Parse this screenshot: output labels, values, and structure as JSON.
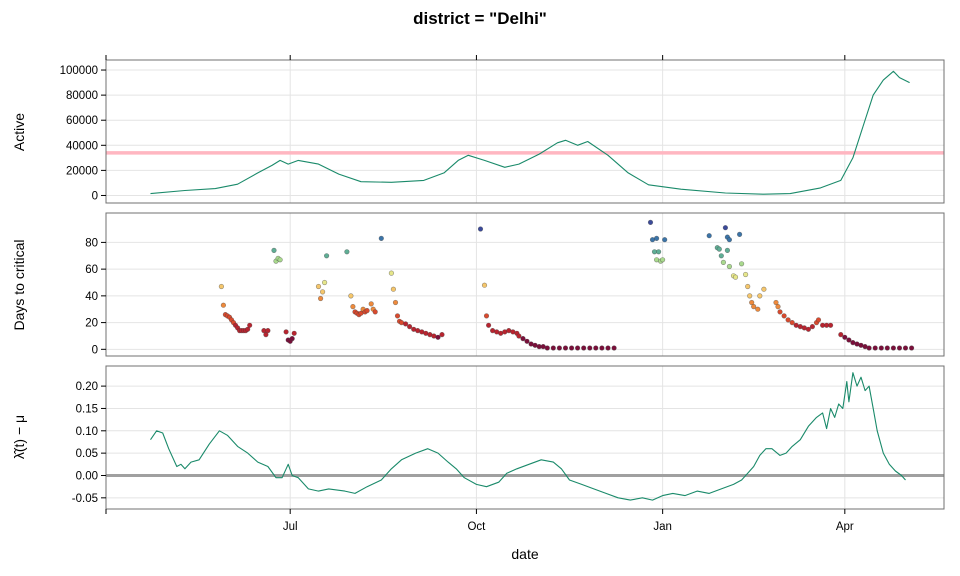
{
  "title": "district = \"Delhi\"",
  "xlabel": "date",
  "x_tick_labels": [
    "Jul",
    "Oct",
    "Jan",
    "Apr"
  ],
  "colors": {
    "line": "#1a8a6a",
    "threshold": "#ffb6c1",
    "zero_line": "#a0a0a0",
    "grid": "#e4e4e4",
    "frame": "#707070"
  },
  "chart_data": [
    {
      "type": "line",
      "panel": "active",
      "ylabel": "Active",
      "y_ticks": [
        0,
        20000,
        40000,
        60000,
        80000,
        100000
      ],
      "y_tick_labels": [
        "0",
        "20000",
        "40000",
        "60000",
        "80000",
        "100000"
      ],
      "ylim": [
        -6000,
        108000
      ],
      "threshold": 34000,
      "x_range": [
        "2020-04-01",
        "2021-05-20"
      ],
      "points": [
        [
          "2020-04-23",
          1500
        ],
        [
          "2020-05-10",
          4000
        ],
        [
          "2020-05-25",
          5500
        ],
        [
          "2020-06-05",
          9000
        ],
        [
          "2020-06-15",
          18000
        ],
        [
          "2020-06-22",
          24000
        ],
        [
          "2020-06-26",
          28000
        ],
        [
          "2020-06-30",
          25000
        ],
        [
          "2020-07-05",
          28000
        ],
        [
          "2020-07-15",
          25000
        ],
        [
          "2020-07-25",
          17000
        ],
        [
          "2020-08-05",
          11000
        ],
        [
          "2020-08-20",
          10500
        ],
        [
          "2020-09-05",
          12000
        ],
        [
          "2020-09-15",
          18000
        ],
        [
          "2020-09-22",
          28000
        ],
        [
          "2020-09-27",
          32000
        ],
        [
          "2020-10-05",
          28000
        ],
        [
          "2020-10-15",
          22500
        ],
        [
          "2020-10-22",
          25000
        ],
        [
          "2020-11-01",
          33000
        ],
        [
          "2020-11-10",
          42000
        ],
        [
          "2020-11-14",
          44000
        ],
        [
          "2020-11-20",
          40000
        ],
        [
          "2020-11-25",
          43000
        ],
        [
          "2020-12-05",
          32000
        ],
        [
          "2020-12-15",
          18000
        ],
        [
          "2020-12-25",
          8500
        ],
        [
          "2021-01-10",
          5000
        ],
        [
          "2021-02-01",
          2000
        ],
        [
          "2021-02-20",
          1000
        ],
        [
          "2021-03-05",
          1500
        ],
        [
          "2021-03-20",
          6000
        ],
        [
          "2021-03-30",
          12000
        ],
        [
          "2021-04-05",
          30000
        ],
        [
          "2021-04-10",
          55000
        ],
        [
          "2021-04-15",
          80000
        ],
        [
          "2021-04-20",
          92000
        ],
        [
          "2021-04-25",
          99000
        ],
        [
          "2021-04-28",
          94000
        ],
        [
          "2021-05-03",
          90000
        ]
      ]
    },
    {
      "type": "scatter",
      "panel": "days-to-critical",
      "ylabel": "Days to critical",
      "y_ticks": [
        0,
        20,
        40,
        60,
        80
      ],
      "y_tick_labels": [
        "0",
        "20",
        "40",
        "60",
        "80"
      ],
      "ylim": [
        -5,
        102
      ],
      "x_range": [
        "2020-04-01",
        "2021-05-20"
      ],
      "points": [
        [
          "2020-05-28",
          47
        ],
        [
          "2020-05-29",
          33
        ],
        [
          "2020-05-30",
          26
        ],
        [
          "2020-05-31",
          25
        ],
        [
          "2020-06-01",
          24
        ],
        [
          "2020-06-02",
          22
        ],
        [
          "2020-06-03",
          20
        ],
        [
          "2020-06-04",
          18
        ],
        [
          "2020-06-05",
          16
        ],
        [
          "2020-06-06",
          14
        ],
        [
          "2020-06-07",
          14
        ],
        [
          "2020-06-08",
          14
        ],
        [
          "2020-06-09",
          14
        ],
        [
          "2020-06-10",
          15
        ],
        [
          "2020-06-11",
          18
        ],
        [
          "2020-06-18",
          14
        ],
        [
          "2020-06-19",
          11
        ],
        [
          "2020-06-20",
          14
        ],
        [
          "2020-06-23",
          74
        ],
        [
          "2020-06-24",
          66
        ],
        [
          "2020-06-25",
          68
        ],
        [
          "2020-06-26",
          67
        ],
        [
          "2020-06-29",
          13
        ],
        [
          "2020-06-30",
          7
        ],
        [
          "2020-07-01",
          6
        ],
        [
          "2020-07-02",
          8
        ],
        [
          "2020-07-03",
          12
        ],
        [
          "2020-07-15",
          47
        ],
        [
          "2020-07-16",
          38
        ],
        [
          "2020-07-17",
          43
        ],
        [
          "2020-07-18",
          50
        ],
        [
          "2020-07-19",
          70
        ],
        [
          "2020-07-29",
          73
        ],
        [
          "2020-07-31",
          40
        ],
        [
          "2020-08-01",
          32
        ],
        [
          "2020-08-02",
          28
        ],
        [
          "2020-08-03",
          27
        ],
        [
          "2020-08-04",
          26
        ],
        [
          "2020-08-05",
          27
        ],
        [
          "2020-08-06",
          30
        ],
        [
          "2020-08-07",
          28
        ],
        [
          "2020-08-08",
          29
        ],
        [
          "2020-08-10",
          34
        ],
        [
          "2020-08-11",
          30
        ],
        [
          "2020-08-12",
          28
        ],
        [
          "2020-08-15",
          83
        ],
        [
          "2020-08-20",
          57
        ],
        [
          "2020-08-21",
          45
        ],
        [
          "2020-08-22",
          35
        ],
        [
          "2020-08-23",
          25
        ],
        [
          "2020-08-24",
          21
        ],
        [
          "2020-08-25",
          20
        ],
        [
          "2020-08-27",
          19
        ],
        [
          "2020-08-29",
          17
        ],
        [
          "2020-08-31",
          15
        ],
        [
          "2020-09-02",
          14
        ],
        [
          "2020-09-04",
          13
        ],
        [
          "2020-09-06",
          12
        ],
        [
          "2020-09-08",
          11
        ],
        [
          "2020-09-10",
          10
        ],
        [
          "2020-09-12",
          9
        ],
        [
          "2020-09-14",
          11
        ],
        [
          "2020-10-03",
          90
        ],
        [
          "2020-10-05",
          48
        ],
        [
          "2020-10-06",
          25
        ],
        [
          "2020-10-07",
          18
        ],
        [
          "2020-10-09",
          14
        ],
        [
          "2020-10-11",
          13
        ],
        [
          "2020-10-13",
          12
        ],
        [
          "2020-10-15",
          13
        ],
        [
          "2020-10-17",
          14
        ],
        [
          "2020-10-19",
          13
        ],
        [
          "2020-10-21",
          12
        ],
        [
          "2020-10-22",
          10
        ],
        [
          "2020-10-24",
          8
        ],
        [
          "2020-10-26",
          6
        ],
        [
          "2020-10-28",
          4
        ],
        [
          "2020-10-30",
          3
        ],
        [
          "2020-11-01",
          2
        ],
        [
          "2020-11-03",
          2
        ],
        [
          "2020-11-05",
          1
        ],
        [
          "2020-11-08",
          1
        ],
        [
          "2020-11-11",
          1
        ],
        [
          "2020-11-14",
          1
        ],
        [
          "2020-11-17",
          1
        ],
        [
          "2020-11-20",
          1
        ],
        [
          "2020-11-23",
          1
        ],
        [
          "2020-11-26",
          1
        ],
        [
          "2020-11-29",
          1
        ],
        [
          "2020-12-02",
          1
        ],
        [
          "2020-12-05",
          1
        ],
        [
          "2020-12-08",
          1
        ],
        [
          "2020-12-26",
          95
        ],
        [
          "2020-12-27",
          82
        ],
        [
          "2020-12-29",
          83
        ],
        [
          "2020-12-28",
          73
        ],
        [
          "2020-12-30",
          73
        ],
        [
          "2020-12-29",
          67
        ],
        [
          "2020-12-31",
          66
        ],
        [
          "2021-01-01",
          67
        ],
        [
          "2021-01-02",
          82
        ],
        [
          "2021-01-24",
          85
        ],
        [
          "2021-01-28",
          76
        ],
        [
          "2021-01-29",
          75
        ],
        [
          "2021-01-30",
          70
        ],
        [
          "2021-01-31",
          65
        ],
        [
          "2021-02-01",
          91
        ],
        [
          "2021-02-02",
          84
        ],
        [
          "2021-02-03",
          82
        ],
        [
          "2021-02-02",
          74
        ],
        [
          "2021-02-03",
          62
        ],
        [
          "2021-02-05",
          55
        ],
        [
          "2021-02-06",
          54
        ],
        [
          "2021-02-08",
          86
        ],
        [
          "2021-02-09",
          64
        ],
        [
          "2021-02-11",
          56
        ],
        [
          "2021-02-12",
          47
        ],
        [
          "2021-02-13",
          40
        ],
        [
          "2021-02-14",
          35
        ],
        [
          "2021-02-15",
          32
        ],
        [
          "2021-02-17",
          30
        ],
        [
          "2021-02-18",
          40
        ],
        [
          "2021-02-20",
          45
        ],
        [
          "2021-02-26",
          35
        ],
        [
          "2021-02-27",
          32
        ],
        [
          "2021-02-28",
          28
        ],
        [
          "2021-03-02",
          25
        ],
        [
          "2021-03-04",
          22
        ],
        [
          "2021-03-06",
          20
        ],
        [
          "2021-03-08",
          18
        ],
        [
          "2021-03-10",
          17
        ],
        [
          "2021-03-12",
          16
        ],
        [
          "2021-03-14",
          15
        ],
        [
          "2021-03-16",
          17
        ],
        [
          "2021-03-18",
          20
        ],
        [
          "2021-03-19",
          22
        ],
        [
          "2021-03-21",
          18
        ],
        [
          "2021-03-23",
          18
        ],
        [
          "2021-03-25",
          18
        ],
        [
          "2021-03-30",
          11
        ],
        [
          "2021-04-01",
          9
        ],
        [
          "2021-04-03",
          7
        ],
        [
          "2021-04-05",
          5
        ],
        [
          "2021-04-07",
          4
        ],
        [
          "2021-04-09",
          3
        ],
        [
          "2021-04-11",
          2
        ],
        [
          "2021-04-13",
          1
        ],
        [
          "2021-04-16",
          1
        ],
        [
          "2021-04-19",
          1
        ],
        [
          "2021-04-22",
          1
        ],
        [
          "2021-04-25",
          1
        ],
        [
          "2021-04-28",
          1
        ],
        [
          "2021-05-01",
          1
        ],
        [
          "2021-05-04",
          1
        ]
      ]
    },
    {
      "type": "line",
      "panel": "lambda",
      "ylabel": "λ̂(t) − μ",
      "y_ticks": [
        -0.05,
        0.0,
        0.05,
        0.1,
        0.15,
        0.2
      ],
      "y_tick_labels": [
        "-0.05",
        "0.00",
        "0.05",
        "0.10",
        "0.15",
        "0.20"
      ],
      "ylim": [
        -0.075,
        0.245
      ],
      "baseline": 0.0,
      "x_range": [
        "2020-04-01",
        "2021-05-20"
      ],
      "points": [
        [
          "2020-04-23",
          0.08
        ],
        [
          "2020-04-26",
          0.1
        ],
        [
          "2020-04-29",
          0.095
        ],
        [
          "2020-05-02",
          0.06
        ],
        [
          "2020-05-06",
          0.02
        ],
        [
          "2020-05-08",
          0.025
        ],
        [
          "2020-05-10",
          0.015
        ],
        [
          "2020-05-13",
          0.03
        ],
        [
          "2020-05-17",
          0.035
        ],
        [
          "2020-05-22",
          0.07
        ],
        [
          "2020-05-27",
          0.1
        ],
        [
          "2020-05-31",
          0.09
        ],
        [
          "2020-06-05",
          0.065
        ],
        [
          "2020-06-10",
          0.05
        ],
        [
          "2020-06-15",
          0.03
        ],
        [
          "2020-06-20",
          0.02
        ],
        [
          "2020-06-24",
          -0.005
        ],
        [
          "2020-06-27",
          -0.005
        ],
        [
          "2020-06-30",
          0.025
        ],
        [
          "2020-07-02",
          0.0
        ],
        [
          "2020-07-05",
          -0.005
        ],
        [
          "2020-07-10",
          -0.03
        ],
        [
          "2020-07-15",
          -0.035
        ],
        [
          "2020-07-20",
          -0.03
        ],
        [
          "2020-07-28",
          -0.035
        ],
        [
          "2020-08-02",
          -0.04
        ],
        [
          "2020-08-08",
          -0.025
        ],
        [
          "2020-08-15",
          -0.01
        ],
        [
          "2020-08-20",
          0.015
        ],
        [
          "2020-08-25",
          0.035
        ],
        [
          "2020-09-01",
          0.05
        ],
        [
          "2020-09-07",
          0.06
        ],
        [
          "2020-09-12",
          0.05
        ],
        [
          "2020-09-17",
          0.03
        ],
        [
          "2020-09-21",
          0.015
        ],
        [
          "2020-09-25",
          -0.005
        ],
        [
          "2020-10-01",
          -0.02
        ],
        [
          "2020-10-06",
          -0.025
        ],
        [
          "2020-10-12",
          -0.015
        ],
        [
          "2020-10-16",
          0.005
        ],
        [
          "2020-10-21",
          0.015
        ],
        [
          "2020-10-27",
          0.025
        ],
        [
          "2020-11-02",
          0.035
        ],
        [
          "2020-11-08",
          0.03
        ],
        [
          "2020-11-12",
          0.015
        ],
        [
          "2020-11-16",
          -0.01
        ],
        [
          "2020-11-22",
          -0.02
        ],
        [
          "2020-11-28",
          -0.03
        ],
        [
          "2020-12-04",
          -0.04
        ],
        [
          "2020-12-10",
          -0.05
        ],
        [
          "2020-12-16",
          -0.055
        ],
        [
          "2020-12-22",
          -0.05
        ],
        [
          "2020-12-27",
          -0.055
        ],
        [
          "2021-01-01",
          -0.045
        ],
        [
          "2021-01-06",
          -0.04
        ],
        [
          "2021-01-12",
          -0.045
        ],
        [
          "2021-01-18",
          -0.035
        ],
        [
          "2021-01-24",
          -0.04
        ],
        [
          "2021-01-30",
          -0.03
        ],
        [
          "2021-02-05",
          -0.02
        ],
        [
          "2021-02-09",
          -0.01
        ],
        [
          "2021-02-12",
          0.005
        ],
        [
          "2021-02-15",
          0.02
        ],
        [
          "2021-02-18",
          0.045
        ],
        [
          "2021-02-21",
          0.06
        ],
        [
          "2021-02-24",
          0.06
        ],
        [
          "2021-02-28",
          0.045
        ],
        [
          "2021-03-03",
          0.05
        ],
        [
          "2021-03-06",
          0.065
        ],
        [
          "2021-03-10",
          0.08
        ],
        [
          "2021-03-14",
          0.11
        ],
        [
          "2021-03-18",
          0.13
        ],
        [
          "2021-03-21",
          0.14
        ],
        [
          "2021-03-23",
          0.105
        ],
        [
          "2021-03-25",
          0.15
        ],
        [
          "2021-03-27",
          0.13
        ],
        [
          "2021-03-29",
          0.16
        ],
        [
          "2021-03-31",
          0.15
        ],
        [
          "2021-04-02",
          0.21
        ],
        [
          "2021-04-03",
          0.165
        ],
        [
          "2021-04-05",
          0.23
        ],
        [
          "2021-04-07",
          0.2
        ],
        [
          "2021-04-09",
          0.22
        ],
        [
          "2021-04-11",
          0.19
        ],
        [
          "2021-04-13",
          0.2
        ],
        [
          "2021-04-15",
          0.15
        ],
        [
          "2021-04-17",
          0.1
        ],
        [
          "2021-04-20",
          0.05
        ],
        [
          "2021-04-23",
          0.025
        ],
        [
          "2021-04-26",
          0.01
        ],
        [
          "2021-04-29",
          0.0
        ],
        [
          "2021-05-01",
          -0.01
        ]
      ]
    }
  ]
}
